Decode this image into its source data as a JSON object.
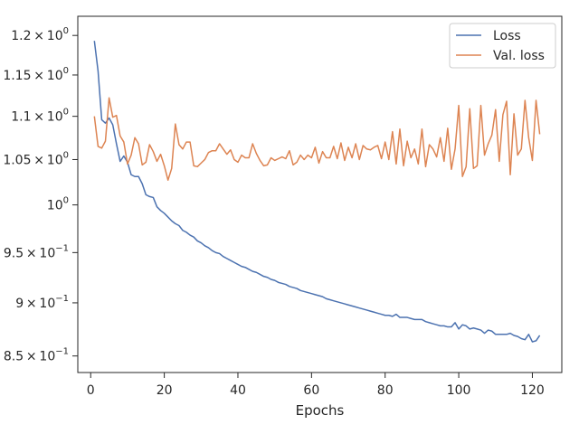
{
  "chart_data": {
    "type": "line",
    "title": "",
    "xlabel": "Epochs",
    "ylabel": "",
    "xlim": [
      -3.5,
      128
    ],
    "ylim": [
      0.835,
      1.225
    ],
    "yscale": "log",
    "grid": false,
    "legend_position": "top-right",
    "x_ticks": [
      0,
      20,
      40,
      60,
      80,
      100,
      120
    ],
    "x_tick_labels": [
      "0",
      "20",
      "40",
      "60",
      "80",
      "100",
      "120"
    ],
    "y_ticks": [
      0.85,
      0.9,
      0.95,
      1.0,
      1.05,
      1.1,
      1.15,
      1.2
    ],
    "y_tick_labels": [
      {
        "mant": "8.5",
        "base": "10",
        "exp": "−1"
      },
      {
        "mant": "9",
        "base": "10",
        "exp": "−1"
      },
      {
        "mant": "9.5",
        "base": "10",
        "exp": "−1"
      },
      {
        "mant": "",
        "base": "10",
        "exp": "0"
      },
      {
        "mant": "1.05",
        "base": "10",
        "exp": "0"
      },
      {
        "mant": "1.1",
        "base": "10",
        "exp": "0"
      },
      {
        "mant": "1.15",
        "base": "10",
        "exp": "0"
      },
      {
        "mant": "1.2",
        "base": "10",
        "exp": "0"
      }
    ],
    "series": [
      {
        "name": "Loss",
        "color": "#4c72b0",
        "x_start": 1,
        "values": [
          1.193,
          1.155,
          1.096,
          1.092,
          1.098,
          1.09,
          1.068,
          1.048,
          1.054,
          1.047,
          1.033,
          1.031,
          1.031,
          1.023,
          1.011,
          1.009,
          1.008,
          0.998,
          0.994,
          0.991,
          0.987,
          0.983,
          0.98,
          0.978,
          0.973,
          0.971,
          0.968,
          0.966,
          0.962,
          0.96,
          0.957,
          0.955,
          0.952,
          0.95,
          0.949,
          0.946,
          0.944,
          0.942,
          0.94,
          0.938,
          0.936,
          0.935,
          0.933,
          0.931,
          0.93,
          0.928,
          0.926,
          0.925,
          0.923,
          0.922,
          0.92,
          0.919,
          0.918,
          0.916,
          0.915,
          0.914,
          0.912,
          0.911,
          0.91,
          0.909,
          0.908,
          0.907,
          0.906,
          0.904,
          0.903,
          0.902,
          0.901,
          0.9,
          0.899,
          0.898,
          0.897,
          0.896,
          0.895,
          0.894,
          0.893,
          0.892,
          0.891,
          0.89,
          0.889,
          0.888,
          0.888,
          0.887,
          0.889,
          0.886,
          0.886,
          0.886,
          0.885,
          0.884,
          0.884,
          0.884,
          0.882,
          0.881,
          0.88,
          0.879,
          0.878,
          0.878,
          0.877,
          0.877,
          0.881,
          0.875,
          0.879,
          0.878,
          0.875,
          0.876,
          0.875,
          0.874,
          0.871,
          0.874,
          0.873,
          0.87,
          0.87,
          0.87,
          0.87,
          0.871,
          0.869,
          0.868,
          0.866,
          0.865,
          0.87,
          0.863,
          0.864,
          0.869
        ]
      },
      {
        "name": "Val. loss",
        "color": "#dd8452",
        "x_start": 1,
        "values": [
          1.1,
          1.065,
          1.063,
          1.071,
          1.122,
          1.099,
          1.101,
          1.077,
          1.07,
          1.045,
          1.055,
          1.075,
          1.068,
          1.044,
          1.047,
          1.067,
          1.059,
          1.048,
          1.056,
          1.043,
          1.027,
          1.04,
          1.091,
          1.067,
          1.062,
          1.07,
          1.07,
          1.043,
          1.042,
          1.046,
          1.05,
          1.058,
          1.06,
          1.06,
          1.068,
          1.062,
          1.056,
          1.061,
          1.05,
          1.047,
          1.055,
          1.052,
          1.052,
          1.068,
          1.057,
          1.049,
          1.043,
          1.044,
          1.052,
          1.049,
          1.051,
          1.053,
          1.051,
          1.06,
          1.044,
          1.047,
          1.055,
          1.05,
          1.055,
          1.052,
          1.064,
          1.046,
          1.059,
          1.052,
          1.052,
          1.065,
          1.051,
          1.069,
          1.049,
          1.064,
          1.052,
          1.068,
          1.05,
          1.066,
          1.062,
          1.061,
          1.064,
          1.066,
          1.051,
          1.07,
          1.05,
          1.082,
          1.045,
          1.085,
          1.043,
          1.071,
          1.052,
          1.062,
          1.045,
          1.085,
          1.042,
          1.067,
          1.062,
          1.053,
          1.075,
          1.048,
          1.086,
          1.039,
          1.062,
          1.113,
          1.031,
          1.042,
          1.109,
          1.04,
          1.043,
          1.113,
          1.055,
          1.068,
          1.078,
          1.108,
          1.048,
          1.102,
          1.118,
          1.033,
          1.103,
          1.055,
          1.062,
          1.119,
          1.075,
          1.049,
          1.119,
          1.079
        ]
      }
    ]
  }
}
